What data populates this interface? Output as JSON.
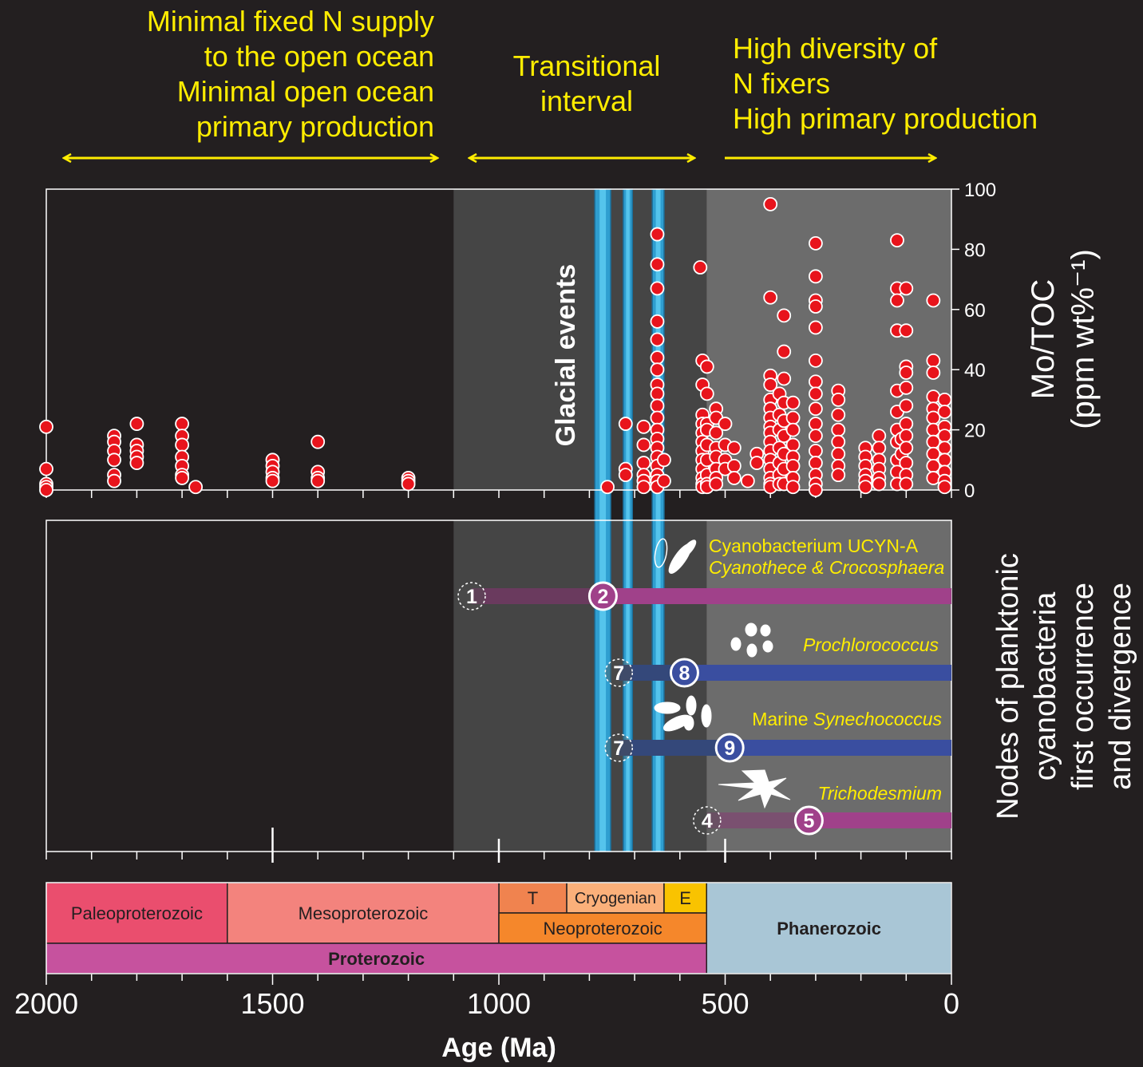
{
  "chart_data": {
    "type": "scatter",
    "annotations": {
      "left": [
        "Minimal fixed N supply",
        "to the open ocean",
        "Minimal open ocean",
        "primary production"
      ],
      "middle": [
        "Transitional",
        "interval"
      ],
      "right": [
        "High diversity of",
        "N fixers",
        "High primary production"
      ]
    },
    "glacial_label": "Glacial events",
    "y_label": [
      "Mo/TOC",
      "(ppm wt%⁻¹)"
    ],
    "lower_y_label": [
      "Nodes of planktonic",
      "cyanobacteria",
      "first occurrence",
      "and divergence"
    ],
    "x_label": "Age (Ma)",
    "xlim": [
      2000,
      0
    ],
    "xticks": [
      2000,
      1500,
      1000,
      500,
      0
    ],
    "xticks_minor": [
      1900,
      1800,
      1700,
      1600,
      1400,
      1300,
      1200,
      1100,
      900,
      800,
      700,
      600,
      400,
      300,
      200,
      100
    ],
    "ylim": [
      0,
      100
    ],
    "yticks": [
      0,
      20,
      40,
      60,
      80,
      100
    ],
    "marker_color": "#e8141c",
    "intervals": [
      {
        "start": 1100,
        "end": 541,
        "color": "#454545"
      },
      {
        "start": 541,
        "end": 0,
        "color": "#6c6c6c"
      }
    ],
    "glacial_events": [
      [
        788,
        753
      ],
      [
        725,
        705
      ],
      [
        661,
        635
      ]
    ],
    "points": [
      {
        "x": 2000,
        "y": [
          21,
          7,
          2,
          1,
          0
        ]
      },
      {
        "x": 1850,
        "y": [
          18,
          16,
          13,
          10,
          5,
          3
        ]
      },
      {
        "x": 1800,
        "y": [
          22,
          15,
          13,
          11,
          9
        ]
      },
      {
        "x": 1700,
        "y": [
          22,
          18,
          15,
          11,
          8,
          5,
          4
        ]
      },
      {
        "x": 1670,
        "y": [
          1
        ]
      },
      {
        "x": 1500,
        "y": [
          10,
          8,
          6,
          4,
          3
        ]
      },
      {
        "x": 1400,
        "y": [
          16,
          6,
          4,
          3
        ]
      },
      {
        "x": 1200,
        "y": [
          4,
          3,
          2
        ]
      },
      {
        "x": 760,
        "y": [
          1
        ]
      },
      {
        "x": 720,
        "y": [
          22,
          7,
          5
        ]
      },
      {
        "x": 680,
        "y": [
          21,
          15,
          9,
          5,
          3,
          1
        ]
      },
      {
        "x": 650,
        "y": [
          85,
          75,
          67,
          56,
          50,
          44,
          40,
          35,
          32,
          28,
          24,
          20,
          17,
          14,
          11,
          8,
          5,
          3,
          1
        ]
      },
      {
        "x": 635,
        "y": [
          10,
          3
        ]
      },
      {
        "x": 555,
        "y": [
          74
        ]
      },
      {
        "x": 550,
        "y": [
          43,
          35,
          25,
          22,
          19,
          16,
          13,
          10,
          7,
          4,
          2,
          1
        ]
      },
      {
        "x": 540,
        "y": [
          41,
          32,
          22,
          20,
          15,
          10,
          5,
          2,
          1
        ]
      },
      {
        "x": 520,
        "y": [
          27,
          24,
          19,
          14,
          11,
          7,
          4,
          2
        ]
      },
      {
        "x": 500,
        "y": [
          22,
          15,
          10,
          7
        ]
      },
      {
        "x": 480,
        "y": [
          14,
          8,
          4
        ]
      },
      {
        "x": 450,
        "y": [
          3
        ]
      },
      {
        "x": 430,
        "y": [
          12,
          9
        ]
      },
      {
        "x": 400,
        "y": [
          95,
          64,
          38,
          35,
          30,
          27,
          24,
          21,
          19,
          16,
          13,
          10,
          7,
          4,
          2,
          1
        ]
      },
      {
        "x": 380,
        "y": [
          32,
          25,
          20,
          14,
          9,
          5,
          2
        ]
      },
      {
        "x": 370,
        "y": [
          58,
          46,
          37,
          29,
          23,
          18,
          12,
          7,
          2
        ]
      },
      {
        "x": 350,
        "y": [
          29,
          24,
          20,
          15,
          11,
          8,
          4,
          1
        ]
      },
      {
        "x": 300,
        "y": [
          82,
          71,
          63,
          61,
          54,
          43,
          36,
          32,
          27,
          22,
          18,
          13,
          9,
          5,
          2,
          0
        ]
      },
      {
        "x": 250,
        "y": [
          33,
          30,
          25,
          20,
          16,
          12,
          8,
          5
        ]
      },
      {
        "x": 190,
        "y": [
          14,
          11,
          8,
          5,
          3,
          1
        ]
      },
      {
        "x": 160,
        "y": [
          18,
          14,
          10,
          7,
          4,
          2
        ]
      },
      {
        "x": 120,
        "y": [
          83,
          67,
          63,
          53,
          33,
          26,
          20,
          16,
          10,
          6,
          2
        ]
      },
      {
        "x": 110,
        "y": [
          17,
          12
        ]
      },
      {
        "x": 100,
        "y": [
          67,
          53,
          41,
          39,
          34,
          28,
          22,
          18,
          14,
          9,
          5,
          2
        ]
      },
      {
        "x": 40,
        "y": [
          63,
          43,
          39,
          31,
          27,
          24,
          20,
          16,
          12,
          8,
          4
        ]
      },
      {
        "x": 15,
        "y": [
          30,
          26,
          21,
          18,
          14,
          10,
          6,
          3,
          1
        ]
      }
    ],
    "lineages": [
      {
        "name": [
          [
            {
              "text": "Cyanobacterium UCYN-A",
              "italic": false
            }
          ],
          [
            {
              "text": "Cyanothece & Crocosphaera",
              "italic": true
            }
          ]
        ],
        "first_node": {
          "label": "1",
          "age": 1060
        },
        "divergence_node": {
          "label": "2",
          "age": 770
        },
        "color": "#a0418a",
        "dim_color": "#6a3a5e"
      },
      {
        "name": [
          [
            {
              "text": "Prochlorococcus",
              "italic": true
            }
          ]
        ],
        "first_node": {
          "label": "7",
          "age": 735
        },
        "divergence_node": {
          "label": "8",
          "age": 590
        },
        "color": "#3a4ea0",
        "dim_color": "#34487a"
      },
      {
        "name": [
          [
            {
              "text": "Marine ",
              "italic": false
            },
            {
              "text": "Synechococcus",
              "italic": true
            }
          ]
        ],
        "first_node": {
          "label": "7",
          "age": 735
        },
        "divergence_node": {
          "label": "9",
          "age": 490
        },
        "color": "#3a4ea0",
        "dim_color": "#34487a"
      },
      {
        "name": [
          [
            {
              "text": "Trichodesmium",
              "italic": true
            }
          ]
        ],
        "first_node": {
          "label": "4",
          "age": 540
        },
        "divergence_node": {
          "label": "5",
          "age": 315
        },
        "color": "#a0418a",
        "dim_color": "#7a5070"
      }
    ],
    "timescale": {
      "periods": [
        {
          "name": "T",
          "start": 1000,
          "end": 850,
          "color": "#f0834f"
        },
        {
          "name": "Cryogenian",
          "start": 850,
          "end": 635,
          "color": "#fbb07a"
        },
        {
          "name": "E",
          "start": 635,
          "end": 541,
          "color": "#f9c300"
        }
      ],
      "eras": [
        {
          "name": "Paleoproterozoic",
          "start": 2500,
          "end": 1600,
          "color": "#ea4e6e"
        },
        {
          "name": "Mesoproterozoic",
          "start": 1600,
          "end": 1000,
          "color": "#f3837d"
        },
        {
          "name": "Neoproterozoic",
          "start": 1000,
          "end": 541,
          "color": "#f5872b"
        }
      ],
      "eons": [
        {
          "name": "Proterozoic",
          "start": 2500,
          "end": 541,
          "color": "#c6529e"
        },
        {
          "name": "Phanerozoic",
          "start": 541,
          "end": 0,
          "color": "#a9c6d6"
        }
      ]
    }
  }
}
